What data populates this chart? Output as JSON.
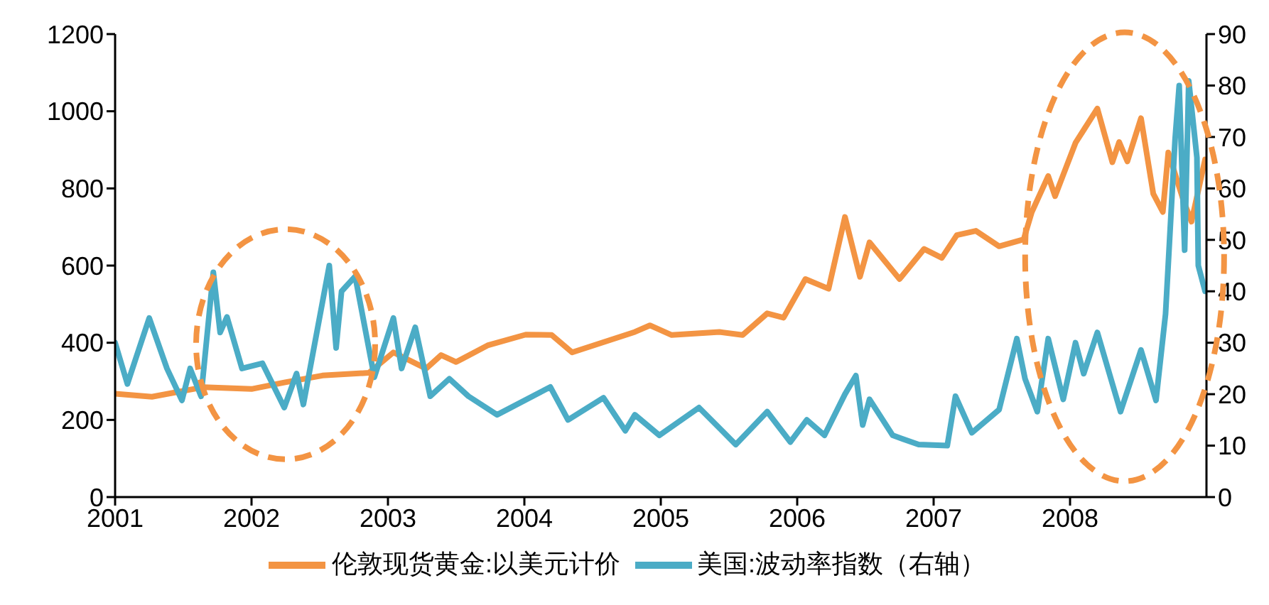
{
  "chart_data": {
    "type": "line",
    "xlim": [
      2001,
      2009
    ],
    "xticks": [
      2001,
      2002,
      2003,
      2004,
      2005,
      2006,
      2007,
      2008
    ],
    "ylim": [
      0,
      1200
    ],
    "yticks": [
      0,
      200,
      400,
      600,
      800,
      1000,
      1200
    ],
    "y2lim": [
      0,
      90
    ],
    "y2ticks": [
      0,
      10,
      20,
      30,
      40,
      50,
      60,
      70,
      80,
      90
    ],
    "legend": "bottom",
    "series": [
      {
        "name": "伦敦现货黄金:以美元计价",
        "color": "#f39443",
        "x": [
          2001.0,
          2001.27,
          2001.65,
          2002.0,
          2002.24,
          2002.52,
          2002.86,
          2003.04,
          2003.28,
          2003.39,
          2003.5,
          2003.73,
          2004.01,
          2004.2,
          2004.35,
          2004.81,
          2004.92,
          2005.08,
          2005.43,
          2005.6,
          2005.78,
          2005.9,
          2006.06,
          2006.23,
          2006.35,
          2006.46,
          2006.53,
          2006.75,
          2006.93,
          2007.06,
          2007.17,
          2007.31,
          2007.48,
          2007.66,
          2007.72,
          2007.84,
          2007.89,
          2008.04,
          2008.2,
          2008.31,
          2008.36,
          2008.42,
          2008.52,
          2008.61,
          2008.68,
          2008.72,
          2008.83,
          2008.89,
          2008.99
        ],
        "values": [
          268,
          260,
          285,
          280,
          297,
          315,
          322,
          375,
          333,
          368,
          350,
          393,
          421,
          420,
          375,
          428,
          445,
          420,
          428,
          420,
          476,
          465,
          565,
          540,
          726,
          571,
          660,
          565,
          643,
          620,
          679,
          690,
          650,
          668,
          739,
          832,
          780,
          918,
          1007,
          868,
          920,
          870,
          982,
          786,
          739,
          893,
          770,
          714,
          875
        ]
      },
      {
        "name": "美国:波动率指数（右轴）",
        "color": "#4bacc6",
        "axis": "y2",
        "x": [
          2001.0,
          2001.09,
          2001.25,
          2001.38,
          2001.49,
          2001.55,
          2001.63,
          2001.72,
          2001.77,
          2001.82,
          2001.93,
          2002.08,
          2002.24,
          2002.33,
          2002.38,
          2002.57,
          2002.62,
          2002.66,
          2002.76,
          2002.9,
          2003.04,
          2003.1,
          2003.2,
          2003.31,
          2003.45,
          2003.59,
          2003.8,
          2004.19,
          2004.32,
          2004.58,
          2004.74,
          2004.81,
          2004.99,
          2005.28,
          2005.55,
          2005.78,
          2005.95,
          2006.07,
          2006.2,
          2006.35,
          2006.43,
          2006.48,
          2006.53,
          2006.7,
          2006.89,
          2007.1,
          2007.16,
          2007.28,
          2007.48,
          2007.61,
          2007.67,
          2007.76,
          2007.84,
          2007.95,
          2008.04,
          2008.1,
          2008.2,
          2008.37,
          2008.52,
          2008.63,
          2008.7,
          2008.77,
          2008.8,
          2008.84,
          2008.87,
          2008.93,
          2008.94,
          2008.99
        ],
        "values": [
          30,
          22,
          34.8,
          25,
          18.8,
          25,
          19.6,
          43.7,
          32,
          35,
          25,
          26,
          17.4,
          24,
          18,
          45,
          29,
          40,
          42.9,
          23.3,
          34.8,
          25,
          33,
          19.6,
          23,
          19.6,
          16,
          21.4,
          15,
          19.3,
          12.9,
          16,
          12,
          17.4,
          10.2,
          16.6,
          10.7,
          15,
          12,
          20,
          23.6,
          14,
          19,
          12,
          10.2,
          10,
          19.6,
          12.5,
          17,
          30.8,
          23,
          16.6,
          30.8,
          19,
          30,
          24,
          32,
          16.6,
          28.6,
          18.8,
          35.6,
          69.6,
          80,
          48,
          80.9,
          66,
          45,
          40
        ]
      }
    ]
  }
}
